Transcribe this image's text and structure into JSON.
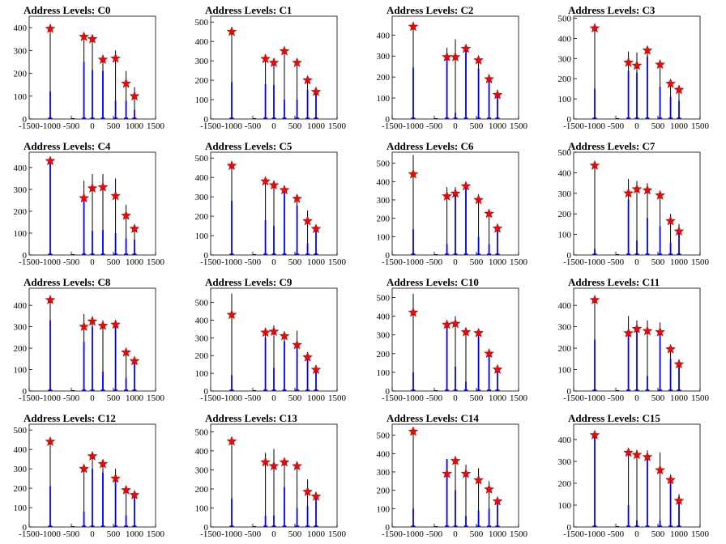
{
  "title_prefix": "Address Levels: ",
  "colors": {
    "bar": "#0000ff",
    "outline": "#000000",
    "marker": "#ff0000"
  },
  "x_ticks": [
    -1500,
    -1000,
    -500,
    0,
    500,
    1000,
    1500
  ],
  "xlim": [
    -1500,
    1500
  ],
  "marker_x": [
    -1000,
    -200,
    0,
    250,
    550,
    800,
    1000
  ],
  "chart_data": [
    {
      "type": "bar",
      "title": "Address Levels: C0",
      "ylim": [
        0,
        450
      ],
      "y_ticks": [
        0,
        100,
        200,
        300,
        400
      ],
      "markers": [
        395,
        360,
        350,
        260,
        265,
        155,
        100
      ],
      "peaks": [
        400,
        360,
        350,
        280,
        300,
        210,
        140
      ],
      "blue": [
        120,
        250,
        215,
        210,
        80,
        80,
        40
      ]
    },
    {
      "type": "bar",
      "title": "Address Levels: C1",
      "ylim": [
        0,
        530
      ],
      "y_ticks": [
        0,
        100,
        200,
        300,
        400,
        500
      ],
      "markers": [
        450,
        310,
        290,
        350,
        290,
        200,
        140
      ],
      "peaks": [
        460,
        310,
        300,
        350,
        310,
        210,
        150
      ],
      "blue": [
        190,
        180,
        175,
        100,
        100,
        150,
        140
      ]
    },
    {
      "type": "bar",
      "title": "Address Levels: C2",
      "ylim": [
        0,
        490
      ],
      "y_ticks": [
        0,
        100,
        200,
        300,
        400
      ],
      "markers": [
        440,
        295,
        295,
        335,
        280,
        190,
        115
      ],
      "peaks": [
        450,
        340,
        380,
        340,
        300,
        200,
        140
      ],
      "blue": [
        245,
        290,
        30,
        330,
        240,
        185,
        110
      ]
    },
    {
      "type": "bar",
      "title": "Address Levels: C3",
      "ylim": [
        0,
        510
      ],
      "y_ticks": [
        0,
        100,
        200,
        300,
        400,
        500
      ],
      "markers": [
        450,
        280,
        265,
        340,
        270,
        175,
        145
      ],
      "peaks": [
        470,
        335,
        330,
        345,
        290,
        180,
        150
      ],
      "blue": [
        150,
        240,
        230,
        310,
        160,
        110,
        90
      ]
    },
    {
      "type": "bar",
      "title": "Address Levels: C4",
      "ylim": [
        0,
        470
      ],
      "y_ticks": [
        0,
        100,
        200,
        300,
        400
      ],
      "markers": [
        430,
        260,
        305,
        310,
        270,
        180,
        120
      ],
      "peaks": [
        440,
        340,
        370,
        370,
        350,
        230,
        130
      ],
      "blue": [
        430,
        250,
        110,
        115,
        100,
        75,
        70
      ]
    },
    {
      "type": "bar",
      "title": "Address Levels: C5",
      "ylim": [
        0,
        530
      ],
      "y_ticks": [
        0,
        100,
        200,
        300,
        400,
        500
      ],
      "markers": [
        460,
        380,
        360,
        335,
        290,
        175,
        135
      ],
      "peaks": [
        480,
        390,
        360,
        340,
        300,
        230,
        140
      ],
      "blue": [
        280,
        180,
        150,
        320,
        255,
        60,
        120
      ]
    },
    {
      "type": "bar",
      "title": "Address Levels: C6",
      "ylim": [
        0,
        560
      ],
      "y_ticks": [
        0,
        100,
        200,
        300,
        400,
        500
      ],
      "markers": [
        440,
        320,
        335,
        375,
        300,
        225,
        145
      ],
      "peaks": [
        545,
        370,
        370,
        380,
        330,
        240,
        150
      ],
      "blue": [
        140,
        60,
        320,
        360,
        100,
        60,
        140
      ]
    },
    {
      "type": "bar",
      "title": "Address Levels: C7",
      "ylim": [
        0,
        500
      ],
      "y_ticks": [
        0,
        100,
        200,
        300,
        400,
        500
      ],
      "markers": [
        435,
        300,
        320,
        315,
        290,
        165,
        115
      ],
      "peaks": [
        440,
        370,
        360,
        350,
        300,
        200,
        150
      ],
      "blue": [
        30,
        270,
        70,
        180,
        140,
        60,
        110
      ]
    },
    {
      "type": "bar",
      "title": "Address Levels: C8",
      "ylim": [
        0,
        480
      ],
      "y_ticks": [
        0,
        100,
        200,
        300,
        400
      ],
      "markers": [
        425,
        300,
        325,
        305,
        310,
        180,
        140
      ],
      "peaks": [
        430,
        360,
        350,
        330,
        320,
        190,
        150
      ],
      "blue": [
        330,
        230,
        300,
        90,
        310,
        60,
        140
      ]
    },
    {
      "type": "bar",
      "title": "Address Levels: C9",
      "ylim": [
        0,
        580
      ],
      "y_ticks": [
        0,
        100,
        200,
        300,
        400,
        500
      ],
      "markers": [
        430,
        330,
        335,
        310,
        260,
        190,
        120
      ],
      "peaks": [
        550,
        350,
        370,
        330,
        340,
        220,
        130
      ],
      "blue": [
        90,
        300,
        130,
        280,
        250,
        180,
        115
      ]
    },
    {
      "type": "bar",
      "title": "Address Levels: C10",
      "ylim": [
        0,
        550
      ],
      "y_ticks": [
        0,
        100,
        200,
        300,
        400,
        500
      ],
      "markers": [
        420,
        355,
        360,
        315,
        310,
        200,
        115
      ],
      "peaks": [
        520,
        370,
        400,
        340,
        320,
        220,
        140
      ],
      "blue": [
        100,
        350,
        130,
        50,
        290,
        190,
        110
      ]
    },
    {
      "type": "bar",
      "title": "Address Levels: C11",
      "ylim": [
        0,
        480
      ],
      "y_ticks": [
        0,
        100,
        200,
        300,
        400
      ],
      "markers": [
        425,
        270,
        290,
        280,
        275,
        195,
        125
      ],
      "peaks": [
        440,
        350,
        330,
        330,
        320,
        190,
        130
      ],
      "blue": [
        240,
        260,
        290,
        70,
        270,
        150,
        110
      ]
    },
    {
      "type": "bar",
      "title": "Address Levels: C12",
      "ylim": [
        0,
        530
      ],
      "y_ticks": [
        0,
        100,
        200,
        300,
        400,
        500
      ],
      "markers": [
        440,
        300,
        365,
        325,
        250,
        190,
        165
      ],
      "peaks": [
        460,
        320,
        370,
        330,
        300,
        190,
        170
      ],
      "blue": [
        210,
        80,
        300,
        280,
        240,
        60,
        150
      ]
    },
    {
      "type": "bar",
      "title": "Address Levels: C13",
      "ylim": [
        0,
        540
      ],
      "y_ticks": [
        0,
        100,
        200,
        300,
        400,
        500
      ],
      "markers": [
        450,
        340,
        320,
        340,
        320,
        185,
        160
      ],
      "peaks": [
        460,
        390,
        410,
        350,
        340,
        250,
        170
      ],
      "blue": [
        150,
        60,
        60,
        210,
        100,
        110,
        150
      ]
    },
    {
      "type": "bar",
      "title": "Address Levels: C14",
      "ylim": [
        0,
        560
      ],
      "y_ticks": [
        0,
        100,
        200,
        300,
        400,
        500
      ],
      "markers": [
        520,
        290,
        360,
        290,
        255,
        205,
        140
      ],
      "peaks": [
        520,
        370,
        380,
        340,
        320,
        250,
        150
      ],
      "blue": [
        100,
        370,
        200,
        60,
        90,
        100,
        130
      ]
    },
    {
      "type": "bar",
      "title": "Address Levels: C15",
      "ylim": [
        0,
        470
      ],
      "y_ticks": [
        0,
        100,
        200,
        300,
        400
      ],
      "markers": [
        420,
        340,
        330,
        320,
        260,
        215,
        120
      ],
      "peaks": [
        430,
        360,
        350,
        350,
        340,
        240,
        150
      ],
      "blue": [
        410,
        100,
        30,
        330,
        30,
        230,
        140
      ]
    }
  ]
}
